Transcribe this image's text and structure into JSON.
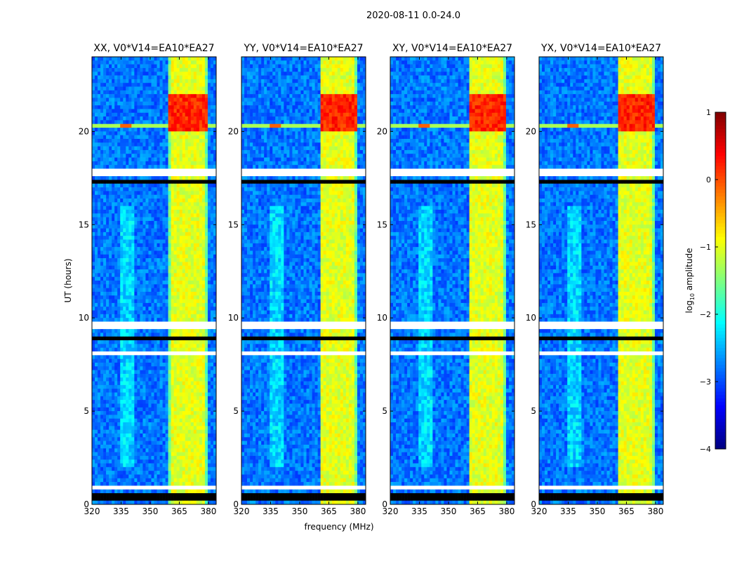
{
  "chart_data": {
    "type": "heatmap",
    "title": "2020-08-11 0.0-24.0",
    "xlabel": "frequency (MHz)",
    "ylabel": "UT (hours)",
    "xlim": [
      320,
      384
    ],
    "ylim": [
      0,
      24
    ],
    "xticks": [
      "320",
      "335",
      "350",
      "365",
      "380"
    ],
    "xtick_values": [
      320,
      335,
      350,
      365,
      380
    ],
    "yticks": [
      "0",
      "5",
      "10",
      "15",
      "20"
    ],
    "ytick_values": [
      0,
      5,
      10,
      15,
      20
    ],
    "panels": [
      {
        "title": "XX, V0*V14=EA10*EA27",
        "rfi_band": [
          360,
          380
        ]
      },
      {
        "title": "YY, V0*V14=EA10*EA27",
        "rfi_band": [
          361,
          380
        ]
      },
      {
        "title": "XY, V0*V14=EA10*EA27",
        "rfi_band": [
          361,
          379
        ]
      },
      {
        "title": "YX, V0*V14=EA10*EA27",
        "rfi_band": [
          361,
          379
        ]
      }
    ],
    "colorbar": {
      "label": "log10 amplitude",
      "label_base": "log",
      "label_sub": "10",
      "label_rest": " amplitude",
      "colormap": "jet",
      "range": [
        -4,
        1
      ],
      "ticks": [
        "1",
        "0",
        "−1",
        "−2",
        "−3",
        "−4"
      ],
      "tick_values": [
        1,
        0,
        -1,
        -2,
        -3,
        -4
      ]
    },
    "features": {
      "background_level": -2.8,
      "rfi_level": -1.0,
      "rfi_strong_hours": [
        20,
        22
      ],
      "rfi_strong_level": 0.2,
      "broadband_stripe_hour": 20.3,
      "broadband_stripe_level": -1.3,
      "flagged_hours": [
        [
          17.6,
          17.9
        ],
        [
          9.5,
          9.7
        ],
        [
          8.0,
          8.2
        ],
        [
          0.8,
          1.0
        ]
      ],
      "zero_hours": [
        [
          8.9,
          9.05
        ],
        [
          17.25,
          17.35
        ],
        [
          0.3,
          0.6
        ]
      ]
    }
  }
}
